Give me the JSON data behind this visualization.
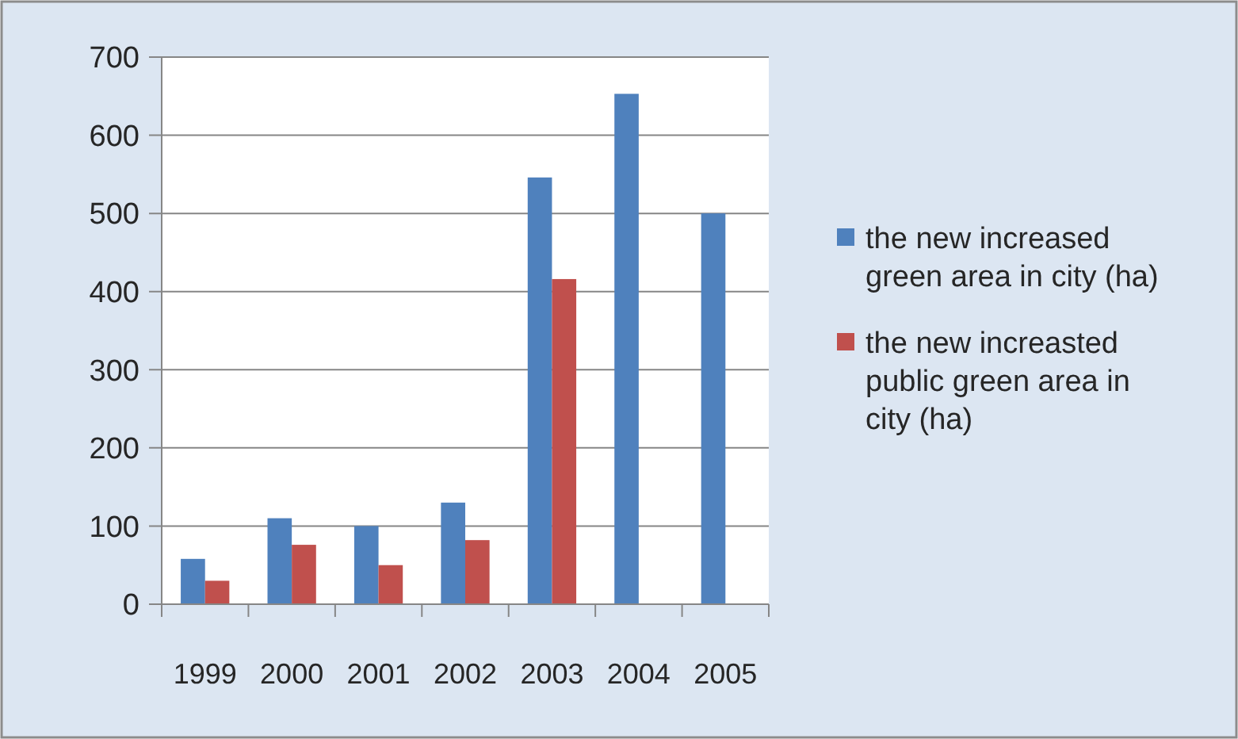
{
  "chart_data": {
    "type": "bar",
    "categories": [
      "1999",
      "2000",
      "2001",
      "2002",
      "2003",
      "2004",
      "2005"
    ],
    "series": [
      {
        "name": "the new increased green area in city (ha)",
        "color": "#4f81bd",
        "values": [
          58,
          110,
          100,
          130,
          546,
          653,
          500
        ]
      },
      {
        "name": "the new increasted public green area in city (ha)",
        "color": "#c0504d",
        "values": [
          30,
          76,
          50,
          82,
          416,
          null,
          null
        ]
      }
    ],
    "ylim": [
      0,
      700
    ],
    "yticks": [
      0,
      100,
      200,
      300,
      400,
      500,
      600,
      700
    ],
    "grid": "y",
    "legend": "right"
  }
}
